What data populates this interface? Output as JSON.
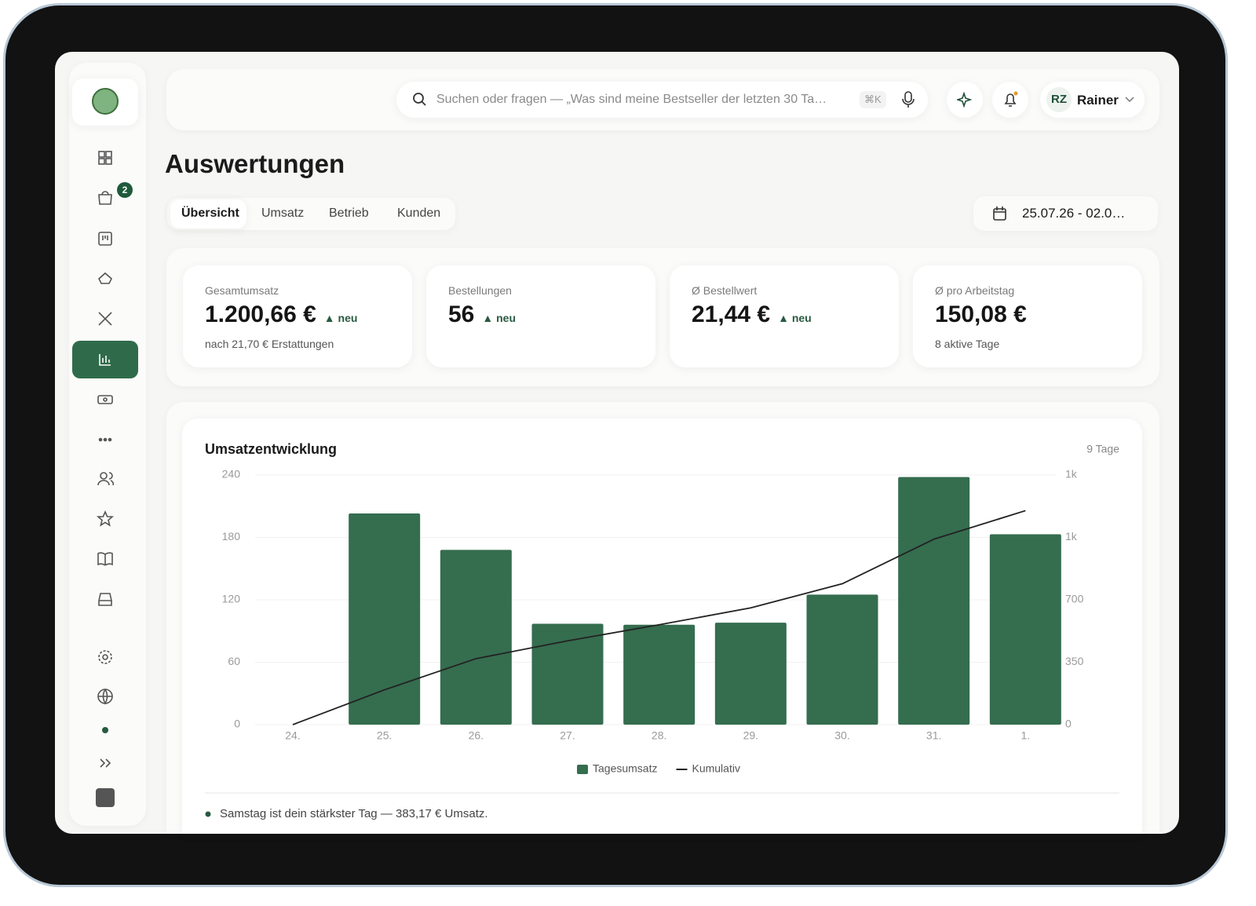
{
  "search": {
    "placeholder": "Suchen oder fragen — „Was sind meine Bestseller der letzten 30 Ta…",
    "shortcut": "⌘K"
  },
  "user": {
    "initials": "RZ",
    "name": "Rainer"
  },
  "sidebar": {
    "badge": "2"
  },
  "page": {
    "title": "Auswertungen"
  },
  "tabs": [
    "Übersicht",
    "Umsatz",
    "Betrieb",
    "Kunden"
  ],
  "date_range": "25.07.26 - 02.0…",
  "kpis": [
    {
      "label": "Gesamtumsatz",
      "value": "1.200,66 €",
      "badge": "▲ neu",
      "sub": "nach 21,70 € Erstattungen"
    },
    {
      "label": "Bestellungen",
      "value": "56",
      "badge": "▲ neu"
    },
    {
      "label": "Ø Bestellwert",
      "value": "21,44 €",
      "badge": "▲ neu"
    },
    {
      "label": "Ø pro Arbeitstag",
      "value": "150,08 €",
      "sub": "8 aktive Tage"
    }
  ],
  "chart_data": {
    "type": "bar",
    "title": "Umsatzentwicklung",
    "annotation": "9 Tage",
    "categories": [
      "24.",
      "25.",
      "26.",
      "27.",
      "28.",
      "29.",
      "30.",
      "31.",
      "1."
    ],
    "series": [
      {
        "name": "Tagesumsatz",
        "color": "#356d4f",
        "values": [
          0,
          203,
          168,
          97,
          96,
          98,
          125,
          238,
          183
        ]
      },
      {
        "name": "Kumulativ",
        "color": "#222222",
        "type": "line",
        "axis": "y2",
        "values": [
          0,
          195,
          370,
          470,
          560,
          655,
          790,
          1040,
          1200
        ]
      }
    ],
    "ylim": [
      0,
      240
    ],
    "yticks": [
      0,
      60,
      120,
      180,
      240
    ],
    "y2lim": [
      0,
      1400
    ],
    "y2ticks": [
      0,
      350,
      700,
      {
        "value": 1050,
        "label": "1k"
      },
      {
        "value": 1400,
        "label": "1k"
      }
    ],
    "grid": true,
    "legend": "bottom",
    "note": "Samstag ist dein stärkster Tag — 383,17 € Umsatz."
  }
}
